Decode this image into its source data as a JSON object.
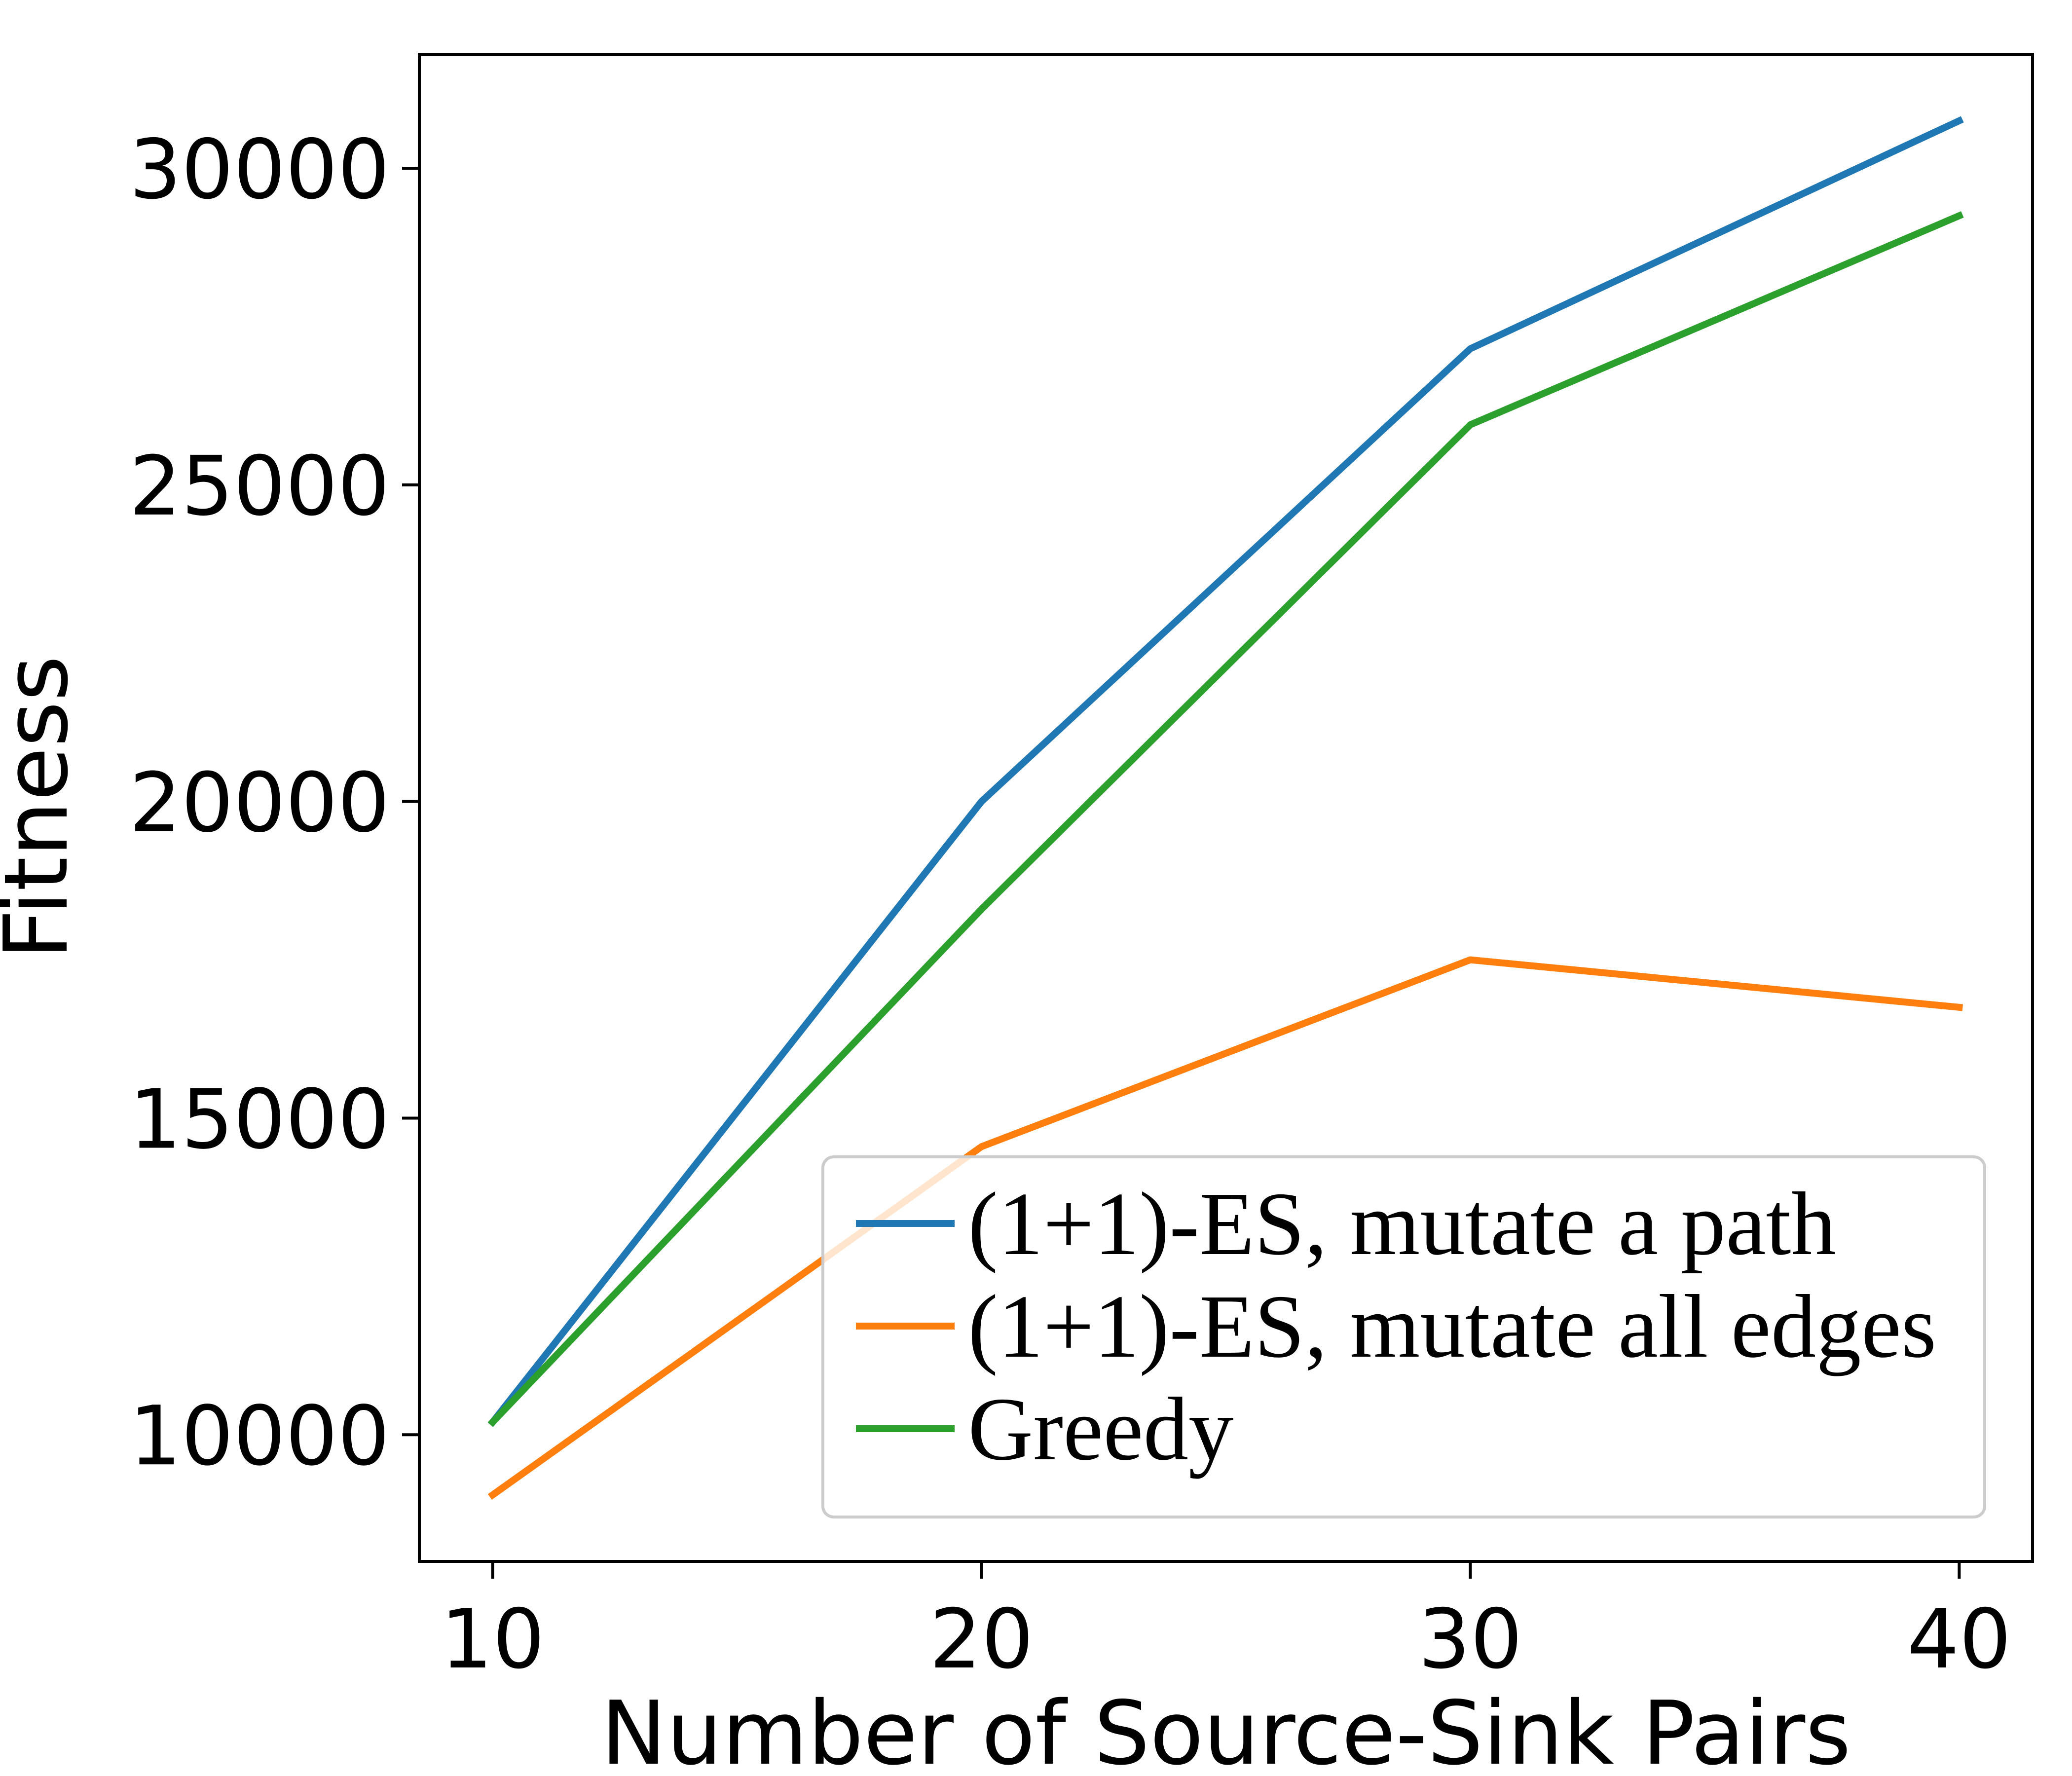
{
  "chart_data": {
    "type": "line",
    "title": "",
    "xlabel": "Number of Source-Sink Pairs",
    "ylabel": "Fitness",
    "x": [
      10,
      20,
      30,
      40
    ],
    "xticks": [
      "10",
      "20",
      "30",
      "40"
    ],
    "yticks": [
      "10000",
      "15000",
      "20000",
      "25000",
      "30000"
    ],
    "xlim": [
      8.5,
      41.5
    ],
    "ylim": [
      8000,
      31800
    ],
    "grid": false,
    "legend_position": "lower-right",
    "series": [
      {
        "name": "(1+1)-ES, mutate a path",
        "values": [
          10200,
          20000,
          27150,
          30750
        ],
        "color": "#1f77b4"
      },
      {
        "name": "(1+1)-ES, mutate all edges",
        "values": [
          9050,
          14550,
          17500,
          16750
        ],
        "color": "#ff7f0e"
      },
      {
        "name": "Greedy",
        "values": [
          10200,
          18300,
          25950,
          29250
        ],
        "color": "#2ca02c"
      }
    ]
  }
}
